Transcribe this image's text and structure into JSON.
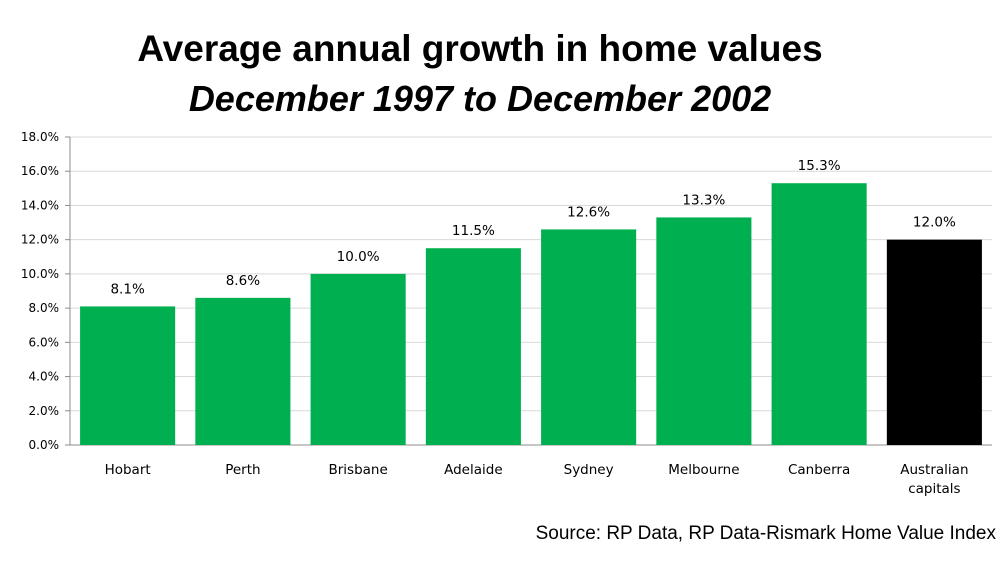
{
  "chart_data": {
    "type": "bar",
    "title": "Average annual growth in home values",
    "subtitle": "December 1997 to December 2002",
    "categories": [
      "Hobart",
      "Perth",
      "Brisbane",
      "Adelaide",
      "Sydney",
      "Melbourne",
      "Canberra",
      "Australian capitals"
    ],
    "category_lines": [
      [
        "Hobart"
      ],
      [
        "Perth"
      ],
      [
        "Brisbane"
      ],
      [
        "Adelaide"
      ],
      [
        "Sydney"
      ],
      [
        "Melbourne"
      ],
      [
        "Canberra"
      ],
      [
        "Australian",
        "capitals"
      ]
    ],
    "values": [
      8.1,
      8.6,
      10.0,
      11.5,
      12.6,
      13.3,
      15.3,
      12.0
    ],
    "value_labels": [
      "8.1%",
      "8.6%",
      "10.0%",
      "11.5%",
      "12.6%",
      "13.3%",
      "15.3%",
      "12.0%"
    ],
    "ylim": [
      0,
      18
    ],
    "yticks": [
      0,
      2,
      4,
      6,
      8,
      10,
      12,
      14,
      16,
      18
    ],
    "ytick_labels": [
      "0.0%",
      "2.0%",
      "4.0%",
      "6.0%",
      "8.0%",
      "10.0%",
      "12.0%",
      "14.0%",
      "16.0%",
      "18.0%"
    ],
    "grid": true,
    "xlabel": "",
    "ylabel": "",
    "colors": {
      "bar": "#00b050",
      "highlight_bar": "#000000",
      "grid": "#d9d9d9",
      "axis": "#8c8c8c"
    },
    "bar_colors": [
      "#00b050",
      "#00b050",
      "#00b050",
      "#00b050",
      "#00b050",
      "#00b050",
      "#00b050",
      "#000000"
    ]
  },
  "source_note": "Source: RP Data, RP Data-Rismark Home Value Index"
}
